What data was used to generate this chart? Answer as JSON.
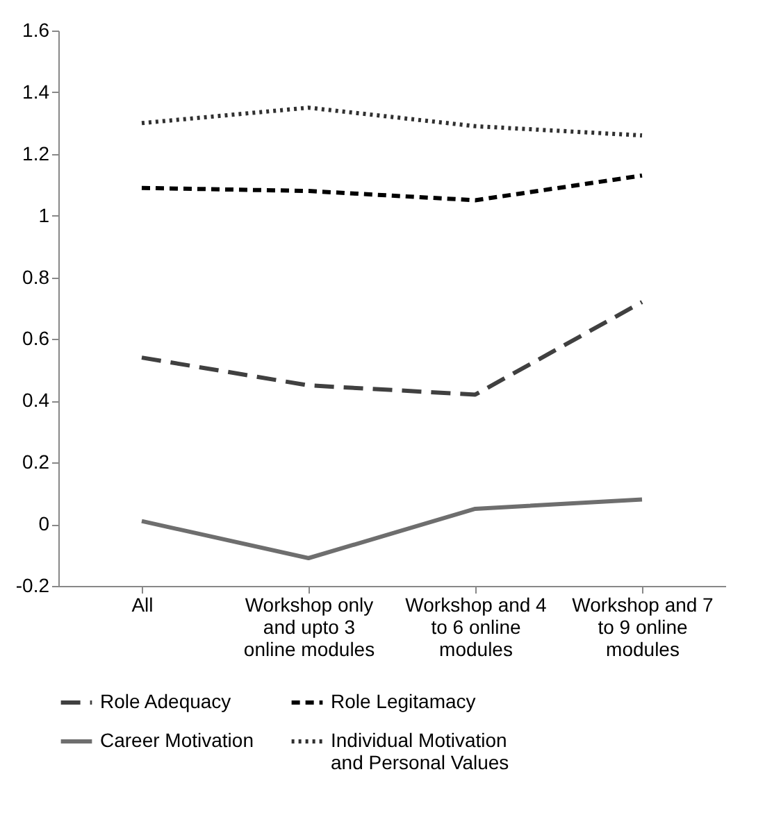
{
  "chart_data": {
    "type": "line",
    "categories": [
      "All",
      "Workshop only and upto 3 online modules",
      "Workshop and 4 to 6 online modules",
      "Workshop and 7 to 9 online modules"
    ],
    "series": [
      {
        "name": "Role Adequacy",
        "color": "#404040",
        "line_style": "dashed",
        "values": [
          0.54,
          0.45,
          0.42,
          0.72
        ]
      },
      {
        "name": "Role Legitamacy",
        "color": "#000000",
        "line_style": "dashed",
        "values": [
          1.09,
          1.08,
          1.05,
          1.13
        ]
      },
      {
        "name": "Career Motivation",
        "color": "#6e6e6e",
        "line_style": "solid",
        "values": [
          0.01,
          -0.11,
          0.05,
          0.08
        ]
      },
      {
        "name": "Individual Motivation and Personal Values",
        "color": "#303030",
        "line_style": "dotted",
        "values": [
          1.3,
          1.35,
          1.29,
          1.26
        ]
      }
    ],
    "ylim": [
      -0.2,
      1.6
    ],
    "yticks": [
      -0.2,
      0,
      0.2,
      0.4,
      0.6,
      0.8,
      1,
      1.2,
      1.4,
      1.6
    ],
    "grid": false,
    "legend": "bottom",
    "marker": "none"
  }
}
